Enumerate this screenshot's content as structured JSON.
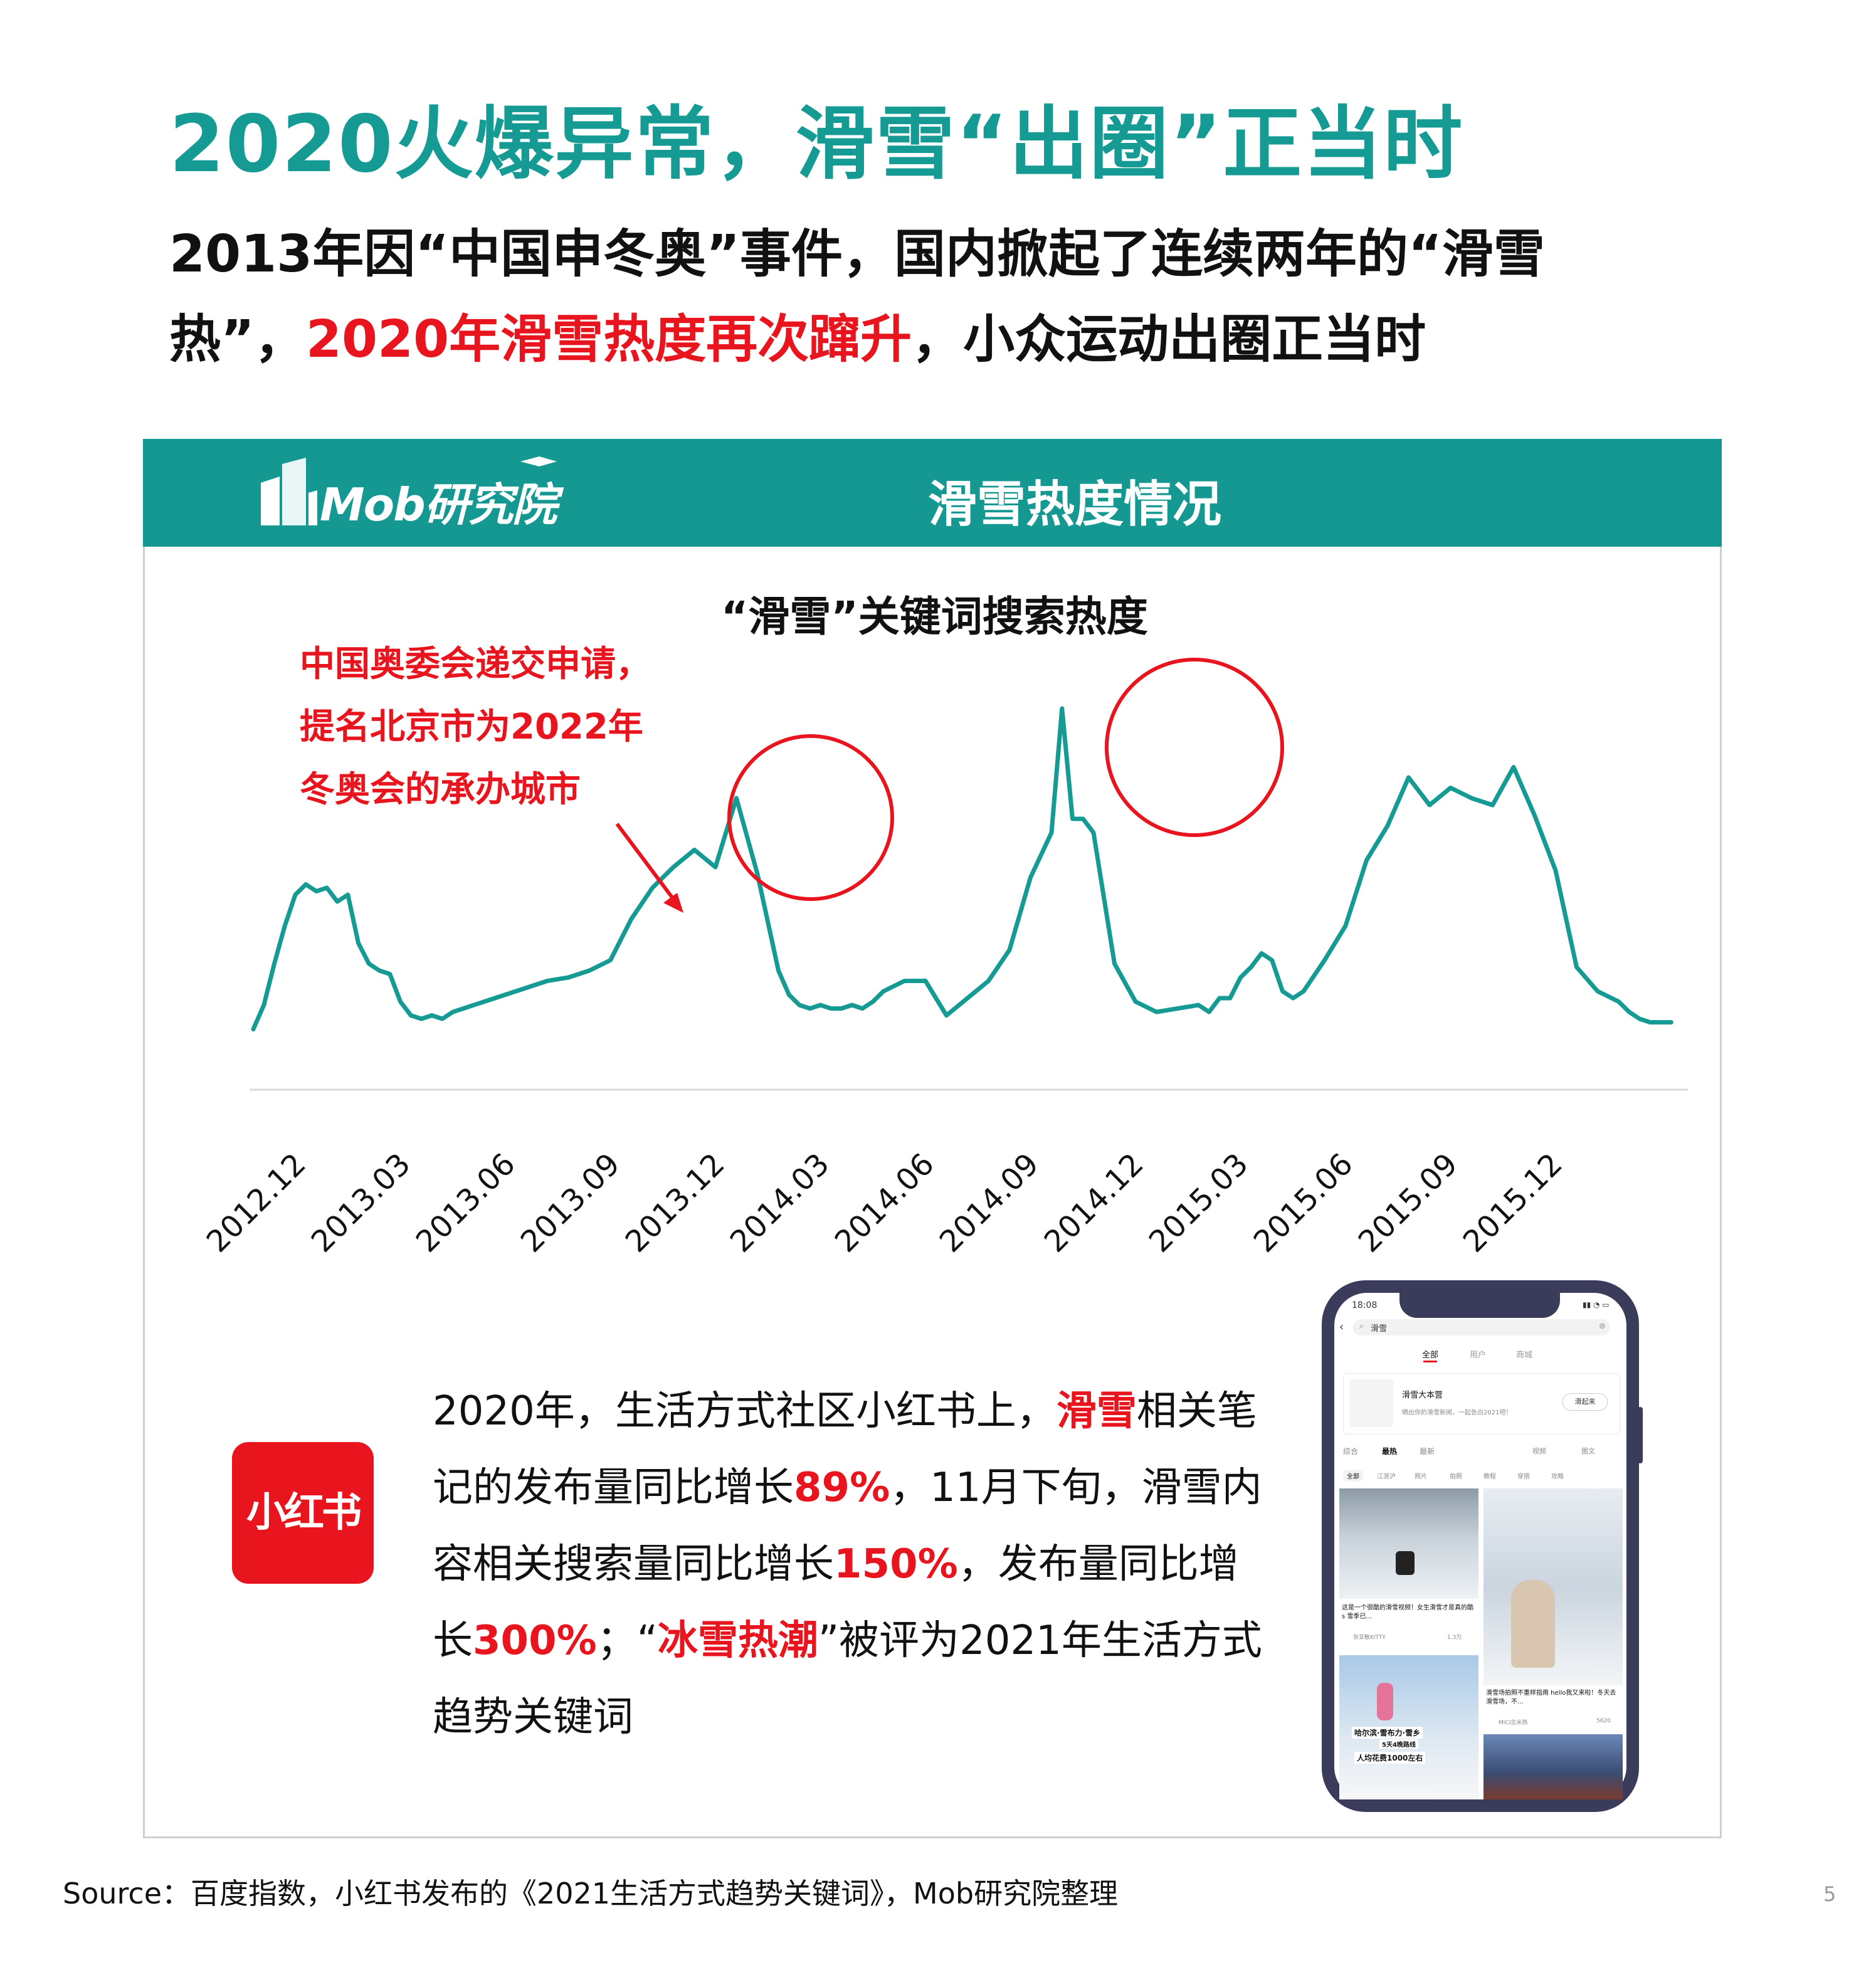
{
  "title": "2020火爆异常，滑雪“出圈”正当时",
  "subtitle": {
    "line1": "2013年因“中国申冬奥”事件，国内掀起了连续两年的“滑雪",
    "line2_a": "热”，",
    "line2_red": "2020年滑雪热度再次蹿升",
    "line2_b": "，小众运动出圈正当时"
  },
  "banner": {
    "logo_text": "Mob研究院",
    "title": "滑雪热度情况"
  },
  "annotation": {
    "lines": [
      "中国奥委会递交申请，",
      "提名北京市为2022年",
      "冬奥会的承办城市"
    ]
  },
  "chart_data": {
    "type": "line",
    "title": "“滑雪”关键词搜索热度",
    "x_tick_labels": [
      "2012.12",
      "2013.03",
      "2013.06",
      "2013.09",
      "2013.12",
      "2014.03",
      "2014.06",
      "2014.09",
      "2014.12",
      "2015.03",
      "2015.06",
      "2015.09",
      "2015.12"
    ],
    "xlabel": "",
    "ylabel": "",
    "y_axis": "hidden (relative search index)",
    "ylim": [
      0,
      100
    ],
    "grid": false,
    "color": "#159a94",
    "highlighted_peaks": [
      "2014.03",
      "2015.01"
    ],
    "series": [
      {
        "name": "滑雪",
        "x": [
          0,
          0.1,
          0.2,
          0.3,
          0.4,
          0.5,
          0.6,
          0.7,
          0.8,
          0.9,
          1.0,
          1.1,
          1.2,
          1.3,
          1.4,
          1.5,
          1.6,
          1.7,
          1.8,
          1.9,
          2.0,
          2.2,
          2.4,
          2.6,
          2.8,
          3.0,
          3.2,
          3.4,
          3.6,
          3.8,
          4.0,
          4.2,
          4.4,
          4.6,
          4.8,
          5.0,
          5.1,
          5.2,
          5.3,
          5.4,
          5.5,
          5.6,
          5.7,
          5.8,
          5.9,
          6.0,
          6.2,
          6.4,
          6.6,
          6.8,
          7.0,
          7.2,
          7.4,
          7.6,
          7.7,
          7.8,
          7.9,
          8.0,
          8.2,
          8.4,
          8.6,
          8.8,
          9.0,
          9.1,
          9.2,
          9.3,
          9.4,
          9.5,
          9.6,
          9.7,
          9.8,
          9.9,
          10.0,
          10.2,
          10.4,
          10.6,
          10.8,
          11.0,
          11.2,
          11.4,
          11.6,
          11.8,
          12.0,
          12.2,
          12.4,
          12.6,
          12.8,
          13.0,
          13.1,
          13.2,
          13.3,
          13.4,
          13.5,
          13.6,
          13.7,
          13.8,
          13.9,
          14.0,
          14.2,
          14.4,
          14.6,
          14.8,
          15.0,
          15.2,
          15.4,
          15.6
        ],
        "y": [
          3,
          10,
          22,
          33,
          42,
          45,
          43,
          44,
          40,
          42,
          28,
          22,
          20,
          19,
          11,
          7,
          6,
          7,
          6,
          8,
          9,
          11,
          13,
          15,
          17,
          18,
          20,
          23,
          35,
          44,
          50,
          55,
          50,
          70,
          48,
          20,
          13,
          10,
          9,
          10,
          9,
          9,
          10,
          9,
          11,
          14,
          17,
          17,
          7,
          12,
          17,
          26,
          47,
          60,
          96,
          64,
          64,
          60,
          22,
          11,
          8,
          9,
          10,
          8,
          12,
          12,
          18,
          21,
          25,
          23,
          14,
          12,
          14,
          23,
          33,
          52,
          62,
          76,
          68,
          73,
          70,
          68,
          79,
          65,
          49,
          21,
          14,
          11,
          8,
          6,
          5,
          5,
          5,
          5,
          5,
          5,
          5,
          5,
          5,
          5,
          5,
          5,
          5,
          5,
          5,
          5
        ]
      }
    ]
  },
  "xhs": {
    "logo_text": "小红书",
    "p1_a": "2020年，生活方式社区小红书上，",
    "p1_red": "滑雪",
    "p1_b": "相关笔记的发布量同比增长",
    "p1_red2": "89%",
    "p1_c": "，11月下旬，滑雪内容相关搜索量同比增长",
    "p1_red3": "150%",
    "p1_d": "，发布量同比增长",
    "p1_red4": "300%",
    "p1_e": "；“",
    "p1_red5": "冰雪热潮",
    "p1_f": "”被评为2021年生活方式趋势关键词"
  },
  "phone": {
    "time": "18:08",
    "search_query": "滑雪",
    "tabs": [
      "全部",
      "用户",
      "商城"
    ],
    "card_title": "滑雪大本营",
    "card_desc": "晒出你的滑雪新闻，一起告白2021吧！",
    "card_button": "滑起来",
    "sort_tabs": [
      "综合",
      "最热",
      "最新"
    ],
    "view_tabs": [
      "视频",
      "图文"
    ],
    "filter_tabs": [
      "全部",
      "江浙沪",
      "照片",
      "拍照",
      "教程",
      "穿搭",
      "攻略"
    ],
    "post1_text": "这是一个很酷的滑雪视频！女生滑雪才是真的酷 s 雪季已…",
    "post1_user": "张亚敏KITTY",
    "post1_likes": "1.3万",
    "post2_text": "滑雪场拍照不重样指南 hello我又来啦！冬天去滑雪场，不…",
    "post2_user": "MICI念米西",
    "post2_likes": "5620",
    "post3_overlay1": "哈尔滨·雪布力·雪乡",
    "post3_overlay2": "5天4晚路线",
    "post3_overlay3": "人均花费1000左右"
  },
  "source": "Source：百度指数，小红书发布的《2021生活方式趋势关键词》，Mob研究院整理",
  "page_number": "5"
}
